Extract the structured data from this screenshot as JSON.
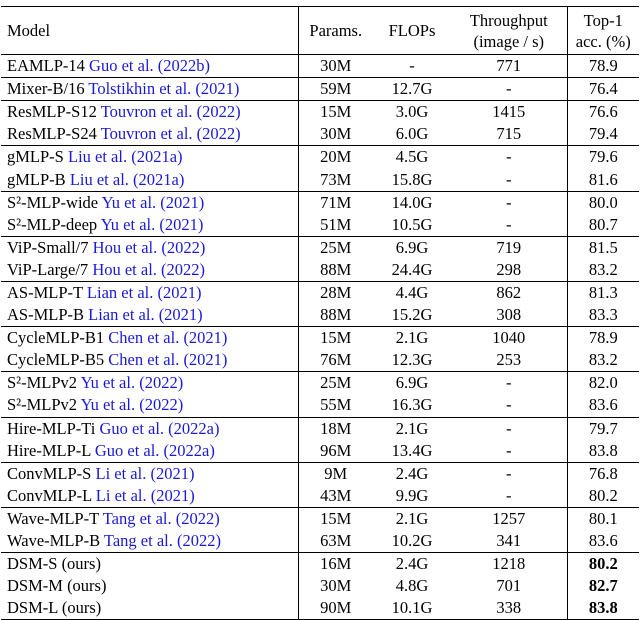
{
  "table": {
    "header": {
      "model": "Model",
      "params": "Params.",
      "flops": "FLOPs",
      "throughput": [
        "Throughput",
        "(image / s)"
      ],
      "top1": [
        "Top-1",
        "acc. (%)"
      ]
    },
    "groups": [
      [
        [
          "EAMLP-14",
          "Guo et al. (2022b)",
          "30M",
          "-",
          "771",
          "78.9"
        ]
      ],
      [
        [
          "Mixer-B/16",
          "Tolstikhin et al. (2021)",
          "59M",
          "12.7G",
          "-",
          "76.4"
        ]
      ],
      [
        [
          "ResMLP-S12",
          "Touvron et al. (2022)",
          "15M",
          "3.0G",
          "1415",
          "76.6"
        ],
        [
          "ResMLP-S24",
          "Touvron et al. (2022)",
          "30M",
          "6.0G",
          "715",
          "79.4"
        ]
      ],
      [
        [
          "gMLP-S",
          "Liu et al. (2021a)",
          "20M",
          "4.5G",
          "-",
          "79.6"
        ],
        [
          "gMLP-B",
          "Liu et al. (2021a)",
          "73M",
          "15.8G",
          "-",
          "81.6"
        ]
      ],
      [
        [
          "S²-MLP-wide",
          "Yu et al. (2021)",
          "71M",
          "14.0G",
          "-",
          "80.0"
        ],
        [
          "S²-MLP-deep",
          "Yu et al. (2021)",
          "51M",
          "10.5G",
          "-",
          "80.7"
        ]
      ],
      [
        [
          "ViP-Small/7",
          "Hou et al. (2022)",
          "25M",
          "6.9G",
          "719",
          "81.5"
        ],
        [
          "ViP-Large/7",
          "Hou et al. (2022)",
          "88M",
          "24.4G",
          "298",
          "83.2"
        ]
      ],
      [
        [
          "AS-MLP-T",
          "Lian et al. (2021)",
          "28M",
          "4.4G",
          "862",
          "81.3"
        ],
        [
          "AS-MLP-B",
          "Lian et al. (2021)",
          "88M",
          "15.2G",
          "308",
          "83.3"
        ]
      ],
      [
        [
          "CycleMLP-B1",
          "Chen et al. (2021)",
          "15M",
          "2.1G",
          "1040",
          "78.9"
        ],
        [
          "CycleMLP-B5",
          "Chen et al. (2021)",
          "76M",
          "12.3G",
          "253",
          "83.2"
        ]
      ],
      [
        [
          "S²-MLPv2",
          "Yu et al. (2022)",
          "25M",
          "6.9G",
          "-",
          "82.0"
        ],
        [
          "S²-MLPv2",
          "Yu et al. (2022)",
          "55M",
          "16.3G",
          "-",
          "83.6"
        ]
      ],
      [
        [
          "Hire-MLP-Ti",
          "Guo et al. (2022a)",
          "18M",
          "2.1G",
          "-",
          "79.7"
        ],
        [
          "Hire-MLP-L",
          "Guo et al. (2022a)",
          "96M",
          "13.4G",
          "-",
          "83.8"
        ]
      ],
      [
        [
          "ConvMLP-S",
          "Li et al. (2021)",
          "9M",
          "2.4G",
          "-",
          "76.8"
        ],
        [
          "ConvMLP-L",
          "Li et al. (2021)",
          "43M",
          "9.9G",
          "-",
          "80.2"
        ]
      ],
      [
        [
          "Wave-MLP-T",
          "Tang et al. (2022)",
          "15M",
          "2.1G",
          "1257",
          "80.1"
        ],
        [
          "Wave-MLP-B",
          "Tang et al. (2022)",
          "63M",
          "10.2G",
          "341",
          "83.6"
        ]
      ],
      [
        [
          "DSM-S",
          "(ours)",
          "16M",
          "2.4G",
          "1218",
          "80.2"
        ],
        [
          "DSM-M",
          "(ours)",
          "30M",
          "4.8G",
          "701",
          "82.7"
        ],
        [
          "DSM-L",
          "(ours)",
          "90M",
          "10.1G",
          "338",
          "83.8"
        ]
      ]
    ]
  }
}
